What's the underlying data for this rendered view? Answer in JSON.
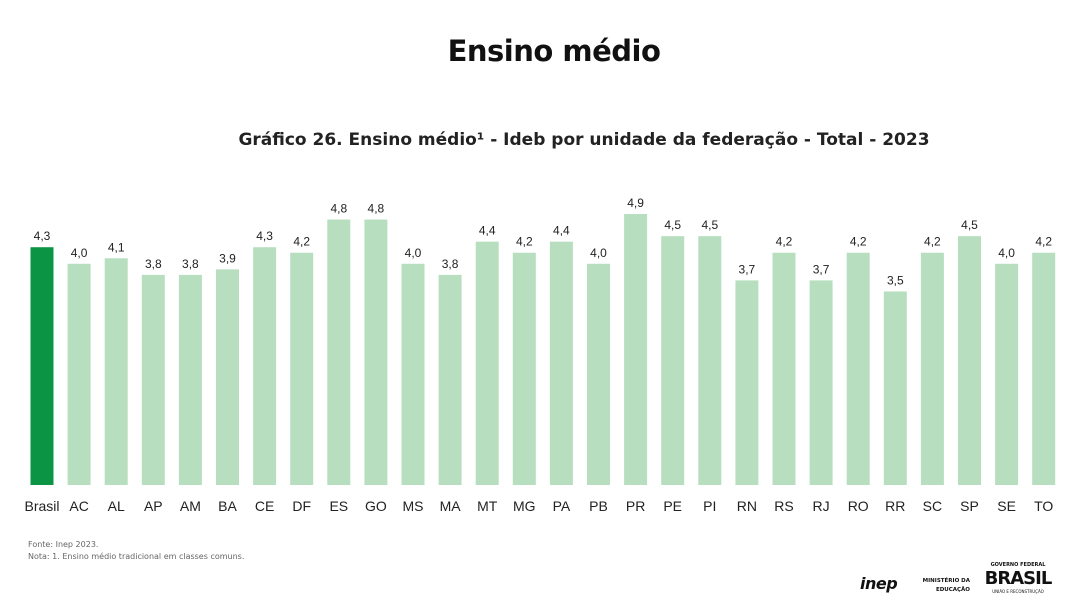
{
  "header": {
    "title": "Ensino médio"
  },
  "chart_data": {
    "type": "bar",
    "title": "Gráfico 26. Ensino médio¹ - Ideb por unidade da federação - Total - 2023",
    "categories": [
      "Brasil",
      "AC",
      "AL",
      "AP",
      "AM",
      "BA",
      "CE",
      "DF",
      "ES",
      "GO",
      "MS",
      "MA",
      "MT",
      "MG",
      "PA",
      "PB",
      "PR",
      "PE",
      "PI",
      "RN",
      "RS",
      "RJ",
      "RO",
      "RR",
      "SC",
      "SP",
      "SE",
      "TO"
    ],
    "values": [
      4.3,
      4.0,
      4.1,
      3.8,
      3.8,
      3.9,
      4.3,
      4.2,
      4.8,
      4.8,
      4.0,
      3.8,
      4.4,
      4.2,
      4.4,
      4.0,
      4.9,
      4.5,
      4.5,
      3.7,
      4.2,
      3.7,
      4.2,
      3.5,
      4.2,
      4.5,
      4.0,
      4.2
    ],
    "ylim": [
      0,
      4.9
    ],
    "grid": false,
    "colors": {
      "highlight": "#0a9444",
      "default": "#b7dfbf"
    }
  },
  "footer": {
    "source": "Fonte: Inep 2023.",
    "note": "Nota: 1. Ensino médio tradicional em classes comuns.",
    "logos": {
      "inep": "inep",
      "ministerio": "MINISTÉRIO DA EDUCAÇÃO",
      "gov": "GOVERNO FEDERAL",
      "brasil": "BRASIL",
      "slogan": "UNIÃO E RECONSTRUÇÃO"
    }
  }
}
